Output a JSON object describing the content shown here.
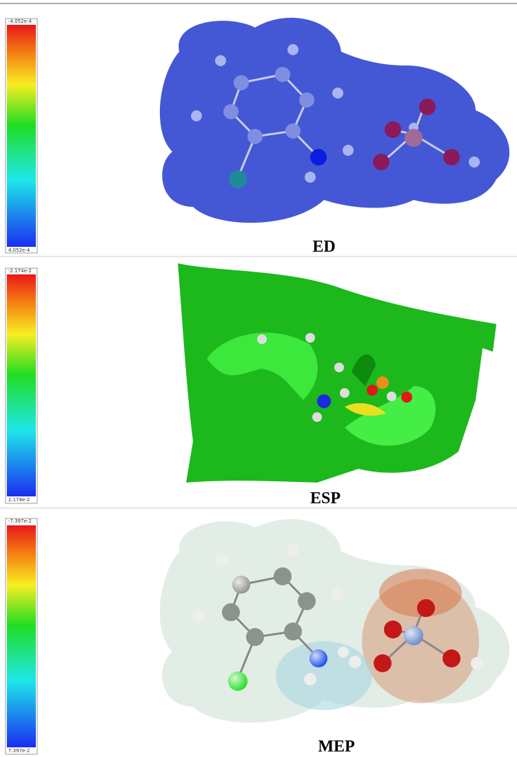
{
  "panels": [
    {
      "scale_top": "-4.052e-4",
      "scale_bottom": "4.052e-4",
      "caption": "ED"
    },
    {
      "scale_top": "-2.174e-2",
      "scale_bottom": "2.174e-2",
      "caption": "ESP"
    },
    {
      "scale_top": "-7.397e-2",
      "scale_bottom": "7.397e-2",
      "caption": "MEP"
    }
  ]
}
